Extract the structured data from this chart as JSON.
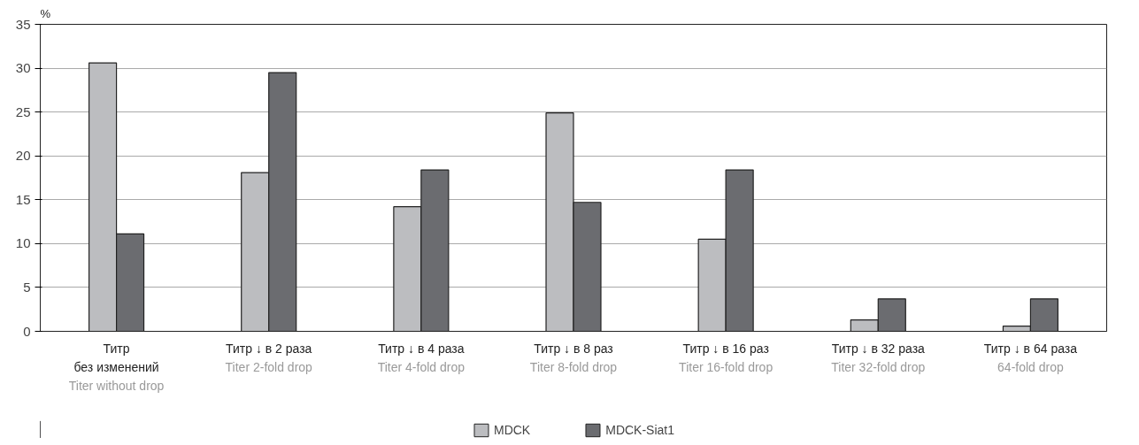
{
  "chart_data": {
    "type": "bar",
    "ylabel": "%",
    "categories": [
      "Титр\nбез изменений\nTiter without drop",
      "Титр ↓ в 2 раза\nTiter 2-fold drop",
      "Титр ↓ в 4 раза\nTiter 4-fold drop",
      "Титр ↓ в 8 раз\nTiter 8-fold drop",
      "Титр ↓ в 16 раз\nTiter 16-fold drop",
      "Титр ↓ в 32 раза\nTiter 32-fold drop",
      "Титр ↓ в 64 раза\n64-fold drop"
    ],
    "series": [
      {
        "name": "MDCK",
        "color": "#bcbdc0",
        "values": [
          30.6,
          18.1,
          14.2,
          24.9,
          10.5,
          1.3,
          0.6
        ]
      },
      {
        "name": "MDCK-Siat1",
        "color": "#6b6c70",
        "values": [
          11.1,
          29.5,
          18.4,
          14.7,
          18.4,
          3.7,
          3.7
        ]
      }
    ],
    "ylim": [
      0,
      35
    ],
    "yticks": [
      0,
      5,
      10,
      15,
      20,
      25,
      30,
      35
    ],
    "grid": "y",
    "legend": "bottom"
  }
}
